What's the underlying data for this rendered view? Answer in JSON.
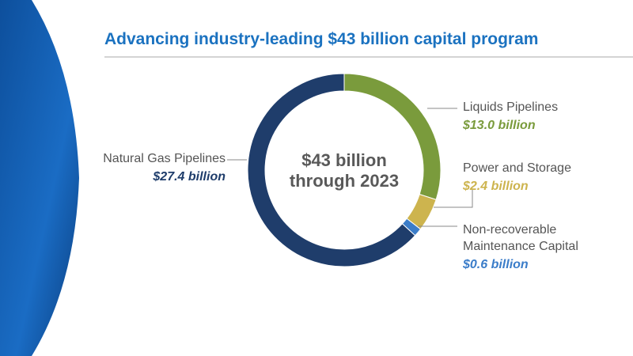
{
  "chart_data": {
    "type": "donut",
    "title": "Advancing industry-leading $43 billion capital program",
    "center_text": [
      "$43 billion",
      "through 2023"
    ],
    "categories": [
      "Liquids Pipelines",
      "Power and Storage",
      "Non-recoverable\nMaintenance Capital",
      "Natural Gas Pipelines"
    ],
    "values": [
      13.0,
      2.4,
      0.6,
      27.4
    ],
    "value_labels": [
      "$13.0 billion",
      "$2.4 billion",
      "$0.6 billion",
      "$27.4 billion"
    ],
    "colors": [
      "#7a9b3c",
      "#cdb44e",
      "#3b7dc9",
      "#1f3d6b"
    ]
  }
}
